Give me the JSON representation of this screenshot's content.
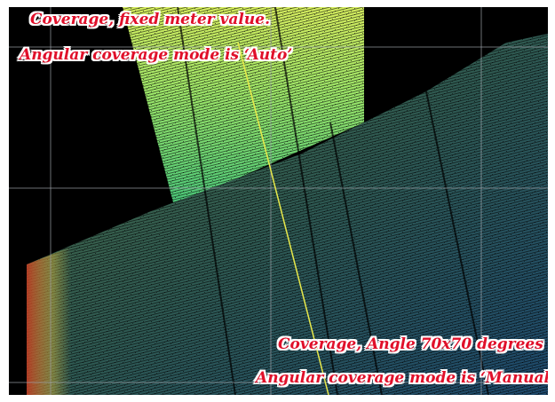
{
  "viewer": {
    "background_color": "#000000",
    "grid_color": "#9aa0a6",
    "scan_line_color": "#e8e84a"
  },
  "annotations": {
    "top_line_1": "Coverage, fixed meter value.",
    "top_line_2": "Angular coverage mode is ‘Auto’",
    "bottom_line_1": "Coverage, Angle 70x70 degrees",
    "bottom_line_2": "Angular coverage mode is ‘Manual’",
    "text_color": "#e0102a",
    "outline_color": "#ffffff"
  },
  "point_clouds": {
    "auto_strip": {
      "colors": [
        "#d8f060",
        "#9de86a",
        "#4cc97a"
      ]
    },
    "manual_plane": {
      "colors": [
        "#3e6a4a",
        "#2f5a52",
        "#1e4a6e",
        "#c8b040",
        "#c83a20"
      ]
    }
  }
}
